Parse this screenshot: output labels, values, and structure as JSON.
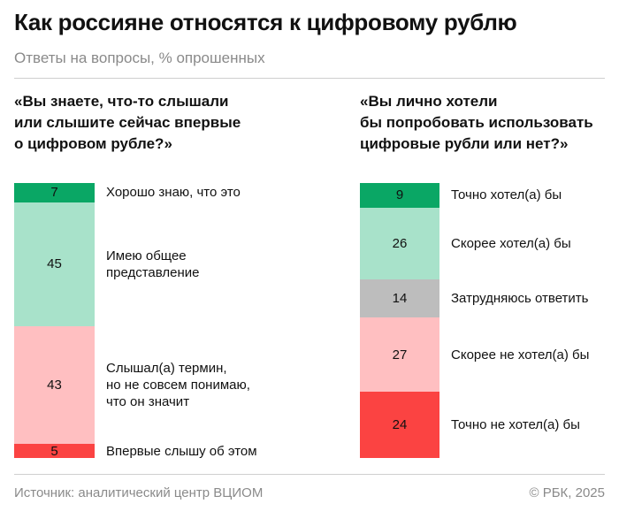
{
  "header": {
    "title": "Как россияне относятся к цифровому рублю",
    "subtitle": "Ответы на вопросы, % опрошенных"
  },
  "footer": {
    "source": "Источник: аналитический центр ВЦИОМ",
    "copyright": "© РБК, 2025"
  },
  "colors": {
    "dark_green": "#0aa765",
    "light_green": "#a8e2ca",
    "gray": "#bdbdbd",
    "light_red": "#ffbfc1",
    "red": "#fb4342"
  },
  "chart_data": [
    {
      "type": "bar",
      "stacked": true,
      "orientation": "vertical",
      "question_lines": [
        "«Вы знаете, что-то слышали",
        "или слышите сейчас впервые",
        "о цифровом рубле?»"
      ],
      "segments": [
        {
          "value": 7,
          "value_label": "7",
          "label_lines": [
            "Хорошо знаю, что это"
          ],
          "color": "#0aa765"
        },
        {
          "value": 45,
          "value_label": "45",
          "label_lines": [
            "Имею общее",
            "представление"
          ],
          "color": "#a8e2ca"
        },
        {
          "value": 43,
          "value_label": "43",
          "label_lines": [
            "Слышал(а) термин,",
            "но не совсем понимаю,",
            "что он значит"
          ],
          "color": "#ffbfc1"
        },
        {
          "value": 5,
          "value_label": "5",
          "label_lines": [
            "Впервые слышу об этом"
          ],
          "color": "#fb4342"
        }
      ]
    },
    {
      "type": "bar",
      "stacked": true,
      "orientation": "vertical",
      "question_lines": [
        "«Вы лично хотели",
        "бы попробовать использовать",
        "цифровые рубли или нет?»"
      ],
      "segments": [
        {
          "value": 9,
          "value_label": "9",
          "label_lines": [
            "Точно хотел(а) бы"
          ],
          "color": "#0aa765"
        },
        {
          "value": 26,
          "value_label": "26",
          "label_lines": [
            "Скорее хотел(а) бы"
          ],
          "color": "#a8e2ca"
        },
        {
          "value": 14,
          "value_label": "14",
          "label_lines": [
            "Затрудняюсь ответить"
          ],
          "color": "#bdbdbd"
        },
        {
          "value": 27,
          "value_label": "27",
          "label_lines": [
            "Скорее не хотел(а) бы"
          ],
          "color": "#ffbfc1"
        },
        {
          "value": 24,
          "value_label": "24",
          "label_lines": [
            "Точно не хотел(а) бы"
          ],
          "color": "#fb4342"
        }
      ]
    }
  ]
}
